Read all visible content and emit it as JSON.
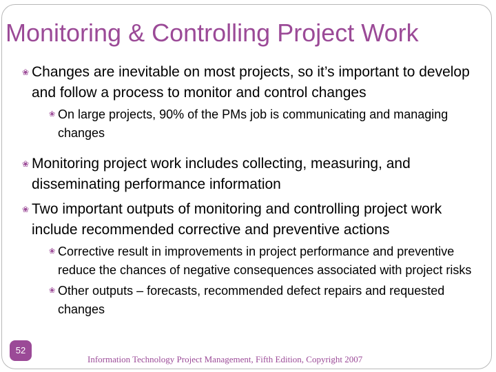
{
  "slide": {
    "title": "Monitoring & Controlling Project Work",
    "page_number": "52",
    "footer": "Information Technology Project Management, Fifth Edition, Copyright 2007",
    "bullet_glyph": "diamond-dots-icon",
    "accent_color": "#9b4a97"
  },
  "bullets": [
    {
      "text": "Changes are inevitable on most projects, so it’s important to develop and follow a process to monitor and control changes"
    },
    {
      "text": "On large projects, 90% of the PMs job is communicating and managing changes"
    },
    {
      "text": "Monitoring project work includes collecting, measuring, and disseminating performance information"
    },
    {
      "text": "Two important outputs of monitoring and controlling project work include recommended corrective and preventive actions"
    },
    {
      "text": "Corrective result in improvements in project performance and preventive reduce the chances of negative consequences associated with project risks"
    },
    {
      "text": "Other outputs – forecasts, recommended defect repairs and requested changes"
    }
  ]
}
